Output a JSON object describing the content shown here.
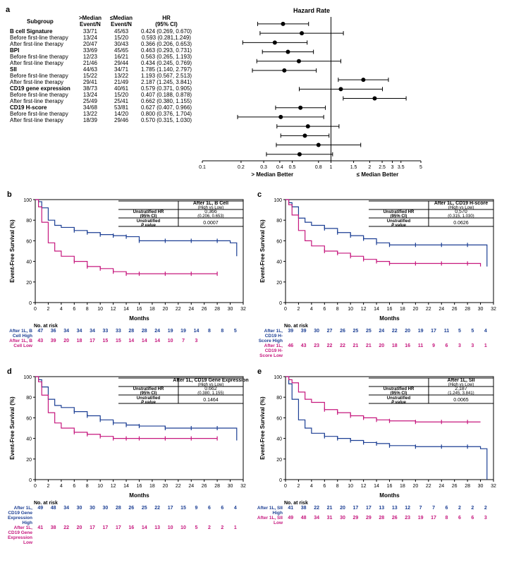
{
  "panelA": {
    "label": "a",
    "columns": [
      "Subgroup",
      ">Median\nEvent/N",
      "≤Median\nEvent/N",
      "HR\n(95% CI)"
    ],
    "forest_header": "Hazard Rate",
    "axis_left": "> Median Better",
    "axis_right": "≤ Median Better",
    "axis_ticks": [
      0.1,
      0.2,
      0.3,
      0.4,
      0.5,
      0.8,
      1,
      1.5,
      2,
      2.5,
      3,
      3.5,
      5
    ],
    "rows": [
      {
        "label": "B cell Signature",
        "gt": "33/71",
        "le": "45/63",
        "hr": "0.424 (0.269, 0.670)",
        "p": 0.424,
        "lo": 0.269,
        "hi": 0.67,
        "bold": true
      },
      {
        "label": "Before first-line therapy",
        "gt": "13/24",
        "le": "15/20",
        "hr": "0.593 (0.281,1.249)",
        "p": 0.593,
        "lo": 0.281,
        "hi": 1.249
      },
      {
        "label": "After first-line therapy",
        "gt": "20/47",
        "le": "30/43",
        "hr": "0.366 (0.206, 0.653)",
        "p": 0.366,
        "lo": 0.206,
        "hi": 0.653
      },
      {
        "label": "BPI",
        "gt": "33/69",
        "le": "45/65",
        "hr": "0.463 (0.293, 0.731)",
        "p": 0.463,
        "lo": 0.293,
        "hi": 0.731,
        "bold": true
      },
      {
        "label": "Before first-line therapy",
        "gt": "12/23",
        "le": "16/21",
        "hr": "0.563 (0.265, 1.193)",
        "p": 0.563,
        "lo": 0.265,
        "hi": 1.193
      },
      {
        "label": "After first-line therapy",
        "gt": "21/46",
        "le": "29/44",
        "hr": "0.434 (0.245, 0.769)",
        "p": 0.434,
        "lo": 0.245,
        "hi": 0.769
      },
      {
        "label": "SII",
        "gt": "44/63",
        "le": "34/71",
        "hr": "1.785 (1.140, 2.797)",
        "p": 1.785,
        "lo": 1.14,
        "hi": 2.797,
        "bold": true
      },
      {
        "label": "Before first-line therapy",
        "gt": "15/22",
        "le": "13/22",
        "hr": "1.193 (0.567, 2.513)",
        "p": 1.193,
        "lo": 0.567,
        "hi": 2.513
      },
      {
        "label": "After first-line therapy",
        "gt": "29/41",
        "le": "21/49",
        "hr": "2.187 (1.245, 3.841)",
        "p": 2.187,
        "lo": 1.245,
        "hi": 3.841
      },
      {
        "label": "CD19 gene expression",
        "gt": "38/73",
        "le": "40/61",
        "hr": "0.579 (0.371, 0.905)",
        "p": 0.579,
        "lo": 0.371,
        "hi": 0.905,
        "bold": true
      },
      {
        "label": "Before first-line therapy",
        "gt": "13/24",
        "le": "15/20",
        "hr": "0.407 (0.188, 0.878)",
        "p": 0.407,
        "lo": 0.188,
        "hi": 0.878
      },
      {
        "label": "After first-line therapy",
        "gt": "25/49",
        "le": "25/41",
        "hr": "0.662 (0.380, 1.155)",
        "p": 0.662,
        "lo": 0.38,
        "hi": 1.155
      },
      {
        "label": "CD19 H-score",
        "gt": "34/68",
        "le": "53/81",
        "hr": "0.627 (0.407, 0.966)",
        "p": 0.627,
        "lo": 0.407,
        "hi": 0.966,
        "bold": true
      },
      {
        "label": "Before first-line therapy",
        "gt": "13/22",
        "le": "14/20",
        "hr": "0.800 (0.376, 1.704)",
        "p": 0.8,
        "lo": 0.376,
        "hi": 1.704
      },
      {
        "label": "After first-line therapy",
        "gt": "18/39",
        "le": "29/46",
        "hr": "0.570 (0.315, 1.030)",
        "p": 0.57,
        "lo": 0.315,
        "hi": 1.03
      }
    ]
  },
  "panels": {
    "b": {
      "label": "b",
      "title": "After 1L, B Cell",
      "subtitle": "(High vs Low)",
      "hr_label": "Unstratified HR (95% CI)",
      "hr": "0.366",
      "ci": "(0.206, 0.653)",
      "p_label": "Unstratified P value",
      "p": "0.0007",
      "xlabel": "Months",
      "ylabel": "Event-Free Survival (%)",
      "x_ticks": [
        0,
        2,
        4,
        6,
        8,
        10,
        12,
        14,
        16,
        18,
        20,
        22,
        24,
        26,
        28,
        30,
        32
      ],
      "y_ticks": [
        0,
        20,
        40,
        60,
        80,
        100
      ],
      "high_name": "After 1L, B Cell High",
      "low_name": "After 1L, B Cell Low",
      "high_curve": [
        [
          0,
          100
        ],
        [
          0.5,
          98
        ],
        [
          1,
          92
        ],
        [
          2,
          80
        ],
        [
          3,
          75
        ],
        [
          4,
          73
        ],
        [
          6,
          70
        ],
        [
          8,
          68
        ],
        [
          10,
          66
        ],
        [
          12,
          65
        ],
        [
          14,
          64
        ],
        [
          16,
          60
        ],
        [
          20,
          60
        ],
        [
          24,
          60
        ],
        [
          28,
          60
        ],
        [
          30,
          58
        ],
        [
          31,
          45
        ]
      ],
      "low_curve": [
        [
          0,
          100
        ],
        [
          0.5,
          93
        ],
        [
          1,
          78
        ],
        [
          2,
          58
        ],
        [
          3,
          50
        ],
        [
          4,
          45
        ],
        [
          6,
          40
        ],
        [
          8,
          35
        ],
        [
          10,
          33
        ],
        [
          12,
          30
        ],
        [
          14,
          28
        ],
        [
          16,
          28
        ],
        [
          20,
          28
        ],
        [
          24,
          28
        ],
        [
          28,
          28
        ]
      ],
      "risk_high": [
        47,
        36,
        34,
        34,
        34,
        33,
        33,
        28,
        28,
        24,
        19,
        19,
        14,
        8,
        8,
        5
      ],
      "risk_low": [
        43,
        39,
        20,
        18,
        17,
        15,
        15,
        14,
        14,
        14,
        10,
        7,
        3
      ]
    },
    "c": {
      "label": "c",
      "title": "After 1L, CD19 H-score",
      "subtitle": "(High vs Low)",
      "hr_label": "Unstratified HR (95% CI)",
      "hr": "0.570",
      "ci": "(0.315, 1.030)",
      "p_label": "Unstratified P value",
      "p": "0.0626",
      "xlabel": "Months",
      "ylabel": "Event-Free Survival (%)",
      "x_ticks": [
        0,
        2,
        4,
        6,
        8,
        10,
        12,
        14,
        16,
        18,
        20,
        22,
        24,
        26,
        28,
        30,
        32
      ],
      "y_ticks": [
        0,
        20,
        40,
        60,
        80,
        100
      ],
      "high_name": "After 1L, CD19 H-Score High",
      "low_name": "After 1L, CD19 H-Score Low",
      "high_curve": [
        [
          0,
          100
        ],
        [
          0.5,
          97
        ],
        [
          1,
          93
        ],
        [
          2,
          82
        ],
        [
          3,
          78
        ],
        [
          4,
          75
        ],
        [
          6,
          72
        ],
        [
          8,
          68
        ],
        [
          10,
          65
        ],
        [
          12,
          62
        ],
        [
          14,
          58
        ],
        [
          16,
          56
        ],
        [
          20,
          56
        ],
        [
          24,
          56
        ],
        [
          28,
          56
        ],
        [
          30,
          56
        ],
        [
          31,
          35
        ]
      ],
      "low_curve": [
        [
          0,
          100
        ],
        [
          0.5,
          95
        ],
        [
          1,
          85
        ],
        [
          2,
          70
        ],
        [
          3,
          60
        ],
        [
          4,
          55
        ],
        [
          6,
          50
        ],
        [
          8,
          48
        ],
        [
          10,
          45
        ],
        [
          12,
          42
        ],
        [
          14,
          40
        ],
        [
          16,
          38
        ],
        [
          20,
          38
        ],
        [
          24,
          38
        ],
        [
          28,
          38
        ],
        [
          30,
          35
        ]
      ],
      "risk_high": [
        39,
        39,
        30,
        27,
        26,
        25,
        25,
        24,
        22,
        20,
        19,
        17,
        11,
        5,
        5,
        4
      ],
      "risk_low": [
        46,
        43,
        23,
        22,
        22,
        21,
        21,
        20,
        18,
        16,
        11,
        9,
        6,
        3,
        3,
        1
      ]
    },
    "d": {
      "label": "d",
      "title": "After 1L, CD19 Gene Expression",
      "subtitle": "(High vs Low)",
      "hr_label": "Unstratified HR (95% CI)",
      "hr": "0.662",
      "ci": "(0.380, 1.155)",
      "p_label": "Unstratified P value",
      "p": "0.1464",
      "xlabel": "Months",
      "ylabel": "Event-Free Survival (%)",
      "x_ticks": [
        0,
        2,
        4,
        6,
        8,
        10,
        12,
        14,
        16,
        18,
        20,
        22,
        24,
        26,
        28,
        30,
        32
      ],
      "y_ticks": [
        0,
        20,
        40,
        60,
        80,
        100
      ],
      "high_name": "After 1L, CD19 Gene Expression High",
      "low_name": "After 1L, CD19 Gene Expression Low",
      "high_curve": [
        [
          0,
          100
        ],
        [
          0.5,
          97
        ],
        [
          1,
          90
        ],
        [
          2,
          78
        ],
        [
          3,
          72
        ],
        [
          4,
          70
        ],
        [
          6,
          66
        ],
        [
          8,
          62
        ],
        [
          10,
          58
        ],
        [
          12,
          55
        ],
        [
          14,
          53
        ],
        [
          16,
          52
        ],
        [
          20,
          50
        ],
        [
          24,
          50
        ],
        [
          28,
          50
        ],
        [
          30,
          50
        ],
        [
          31,
          38
        ]
      ],
      "low_curve": [
        [
          0,
          100
        ],
        [
          0.5,
          95
        ],
        [
          1,
          82
        ],
        [
          2,
          65
        ],
        [
          3,
          55
        ],
        [
          4,
          50
        ],
        [
          6,
          46
        ],
        [
          8,
          44
        ],
        [
          10,
          42
        ],
        [
          12,
          40
        ],
        [
          14,
          40
        ],
        [
          16,
          40
        ],
        [
          20,
          40
        ],
        [
          24,
          40
        ],
        [
          28,
          40
        ]
      ],
      "risk_high": [
        49,
        48,
        34,
        30,
        30,
        30,
        28,
        26,
        25,
        22,
        17,
        15,
        9,
        6,
        6,
        4
      ],
      "risk_low": [
        41,
        38,
        22,
        20,
        17,
        17,
        17,
        16,
        14,
        13,
        10,
        10,
        5,
        2,
        2,
        1
      ]
    },
    "e": {
      "label": "e",
      "title": "After 1L, SII",
      "subtitle": "(High vs Low)",
      "hr_label": "Unstratified HR (95% CI)",
      "hr": "2.187",
      "ci": "(1.245, 3.841)",
      "p_label": "Unstratified P value",
      "p": "0.0065",
      "xlabel": "Months",
      "ylabel": "Event-Free Survival (%)",
      "x_ticks": [
        0,
        2,
        4,
        6,
        8,
        10,
        12,
        14,
        16,
        18,
        20,
        22,
        24,
        26,
        28,
        30,
        32
      ],
      "y_ticks": [
        0,
        20,
        40,
        60,
        80,
        100
      ],
      "high_name": "After 1L, SII High",
      "low_name": "After 1L, SII Low",
      "high_curve": [
        [
          0,
          100
        ],
        [
          0.5,
          93
        ],
        [
          1,
          78
        ],
        [
          2,
          58
        ],
        [
          3,
          50
        ],
        [
          4,
          45
        ],
        [
          6,
          42
        ],
        [
          8,
          40
        ],
        [
          10,
          38
        ],
        [
          12,
          36
        ],
        [
          14,
          35
        ],
        [
          16,
          33
        ],
        [
          20,
          32
        ],
        [
          24,
          32
        ],
        [
          28,
          32
        ],
        [
          30,
          30
        ],
        [
          31,
          0
        ]
      ],
      "low_curve": [
        [
          0,
          100
        ],
        [
          0.5,
          97
        ],
        [
          1,
          94
        ],
        [
          2,
          85
        ],
        [
          3,
          78
        ],
        [
          4,
          75
        ],
        [
          6,
          68
        ],
        [
          8,
          65
        ],
        [
          10,
          62
        ],
        [
          12,
          60
        ],
        [
          14,
          58
        ],
        [
          16,
          57
        ],
        [
          20,
          56
        ],
        [
          24,
          56
        ],
        [
          28,
          56
        ],
        [
          30,
          56
        ]
      ],
      "risk_high": [
        41,
        38,
        22,
        21,
        20,
        17,
        17,
        13,
        13,
        12,
        7,
        7,
        6,
        2,
        2,
        2
      ],
      "risk_low": [
        49,
        48,
        34,
        31,
        30,
        29,
        29,
        28,
        26,
        23,
        19,
        17,
        8,
        6,
        6,
        3
      ]
    }
  },
  "colors": {
    "high": "#1c3f94",
    "low": "#c6187e",
    "axis": "#000000",
    "bg": "#ffffff"
  }
}
